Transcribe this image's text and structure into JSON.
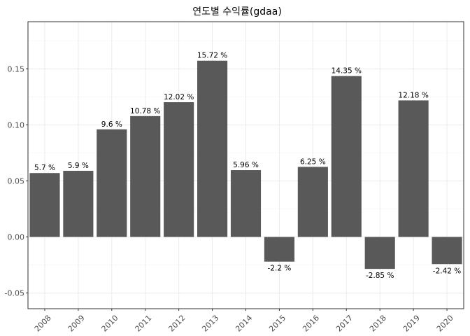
{
  "chart_data": {
    "type": "bar",
    "title": "연도별 수익률(gdaa)",
    "xlabel": "",
    "ylabel": "",
    "categories": [
      "2008",
      "2009",
      "2010",
      "2011",
      "2012",
      "2013",
      "2014",
      "2015",
      "2016",
      "2017",
      "2018",
      "2019",
      "2020"
    ],
    "values": [
      0.057,
      0.059,
      0.096,
      0.1078,
      0.1202,
      0.1572,
      0.0596,
      -0.022,
      0.0625,
      0.1435,
      -0.0285,
      0.1218,
      -0.0242
    ],
    "data_labels": [
      "5.7 %",
      "5.9 %",
      "9.6 %",
      "10.78 %",
      "12.02 %",
      "15.72 %",
      "5.96 %",
      "-2.2 %",
      "6.25 %",
      "14.35 %",
      "-2.85 %",
      "12.18 %",
      "-2.42 %"
    ],
    "yticks": [
      -0.05,
      0.0,
      0.05,
      0.1,
      0.15
    ],
    "ytick_labels": [
      "-0.05",
      "0.00",
      "0.05",
      "0.10",
      "0.15"
    ],
    "ylim": [
      -0.064,
      0.192
    ],
    "bar_color": "#595959",
    "grid": true,
    "legend": "none"
  }
}
